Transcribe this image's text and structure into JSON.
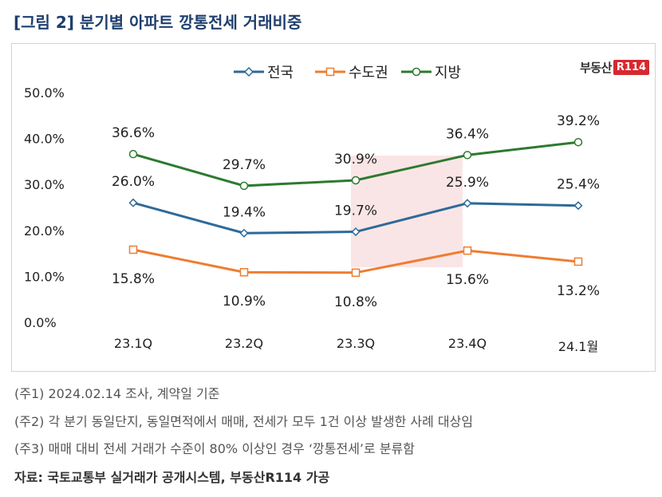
{
  "title": "[그림 2] 분기별 아파트 깡통전세 거래비중",
  "logo": {
    "text": "부동산",
    "badge": "R114"
  },
  "notes": [
    "(주1) 2024.02.14 조사, 계약일 기준",
    "(주2) 각 분기 동일단지, 동일면적에서 매매, 전세가 모두 1건 이상 발생한 사례 대상임",
    "(주3) 매매 대비 전세 거래가 수준이 80% 이상인 경우 ‘깡통전세’로 분류함"
  ],
  "source": "자료: 국토교통부 실거래가 공개시스템, 부동산R114 가공",
  "chart_data": {
    "type": "line",
    "categories": [
      "23.1Q",
      "23.2Q",
      "23.3Q",
      "23.4Q",
      "24.1월"
    ],
    "ylim": [
      0,
      50
    ],
    "yticks": [
      "0.0%",
      "10.0%",
      "20.0%",
      "30.0%",
      "40.0%",
      "50.0%"
    ],
    "legend_position": "top",
    "grid": false,
    "series": [
      {
        "name": "전국",
        "color": "#2e6a99",
        "values": [
          26.0,
          19.4,
          19.7,
          25.9,
          25.4
        ],
        "labels": [
          "26.0%",
          "19.4%",
          "19.7%",
          "25.9%",
          "25.4%"
        ]
      },
      {
        "name": "수도권",
        "color": "#ee7d31",
        "values": [
          15.8,
          10.9,
          10.8,
          15.6,
          13.2
        ],
        "labels": [
          "15.8%",
          "10.9%",
          "10.8%",
          "15.6%",
          "13.2%"
        ]
      },
      {
        "name": "지방",
        "color": "#2d7a2f",
        "values": [
          36.6,
          29.7,
          30.9,
          36.4,
          39.2
        ],
        "labels": [
          "36.6%",
          "29.7%",
          "30.9%",
          "36.4%",
          "39.2%"
        ]
      }
    ]
  }
}
